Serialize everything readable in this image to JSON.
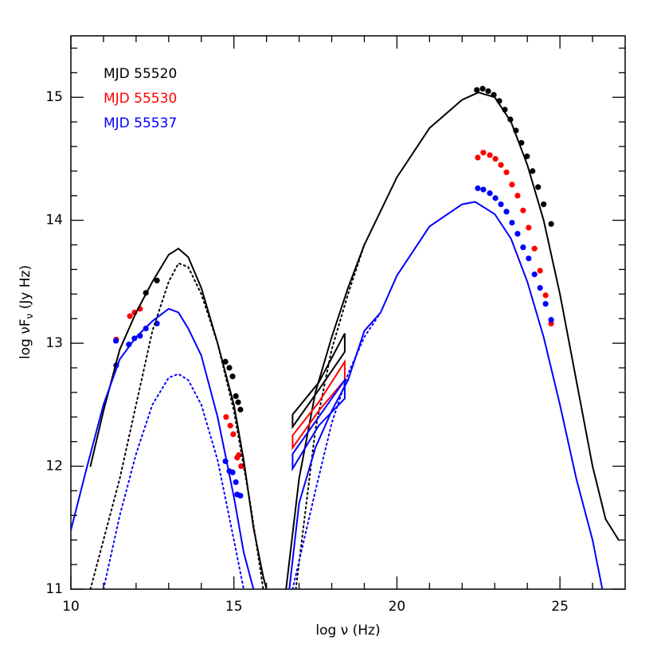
{
  "chart_data": {
    "type": "scatter",
    "xlabel": [
      "log ",
      "ν",
      " (Hz)"
    ],
    "ylabel": [
      "log νF",
      "ν",
      " (Jy Hz)"
    ],
    "xlim": [
      10,
      27
    ],
    "ylim": [
      11,
      15.5
    ],
    "xticks": [
      10,
      15,
      20,
      25
    ],
    "yticks": [
      11,
      12,
      13,
      14,
      15
    ],
    "xminorticks": [
      11,
      12,
      13,
      14,
      16,
      17,
      18,
      19,
      21,
      22,
      23,
      24,
      26
    ],
    "yminorticks": [
      11.2,
      11.4,
      11.6,
      11.8,
      12.2,
      12.4,
      12.6,
      12.8,
      13.2,
      13.4,
      13.6,
      13.8,
      14.2,
      14.4,
      14.6,
      14.8,
      15.2,
      15.4
    ],
    "legend": "upper left",
    "series": [
      {
        "name": "MJD 55520",
        "kind": "points",
        "color": "#000000",
        "x": [
          12.3,
          12.64,
          14.74,
          14.86,
          14.96,
          15.06,
          15.13,
          15.2,
          22.45,
          22.63,
          22.8,
          22.97,
          23.14,
          23.31,
          23.48,
          23.65,
          23.82,
          23.99,
          24.16,
          24.33,
          24.5,
          24.73
        ],
        "values": [
          13.41,
          13.51,
          12.85,
          12.8,
          12.73,
          12.57,
          12.52,
          12.46,
          15.06,
          15.07,
          15.05,
          15.02,
          14.97,
          14.9,
          14.82,
          14.73,
          14.63,
          14.52,
          14.4,
          14.27,
          14.13,
          13.97
        ]
      },
      {
        "name": "MJD 55530",
        "kind": "points",
        "color": "#ff0000",
        "x": [
          11.39,
          11.81,
          11.95,
          12.12,
          14.76,
          14.89,
          14.98,
          15.1,
          15.15,
          15.22,
          22.48,
          22.65,
          22.85,
          23.02,
          23.19,
          23.36,
          23.53,
          23.7,
          23.87,
          24.04,
          24.22,
          24.39,
          24.56,
          24.73
        ],
        "values": [
          13.03,
          13.22,
          13.25,
          13.28,
          12.4,
          12.33,
          12.26,
          12.07,
          12.09,
          12.0,
          14.51,
          14.55,
          14.53,
          14.5,
          14.45,
          14.39,
          14.29,
          14.2,
          14.08,
          13.94,
          13.77,
          13.59,
          13.39,
          13.16
        ]
      },
      {
        "name": "MJD 55537",
        "kind": "points",
        "color": "#0000ff",
        "x": [
          11.39,
          11.38,
          11.78,
          11.95,
          12.12,
          12.3,
          12.64,
          14.74,
          14.86,
          14.96,
          15.06,
          15.1,
          15.2,
          22.48,
          22.65,
          22.85,
          23.02,
          23.19,
          23.36,
          23.53,
          23.7,
          23.87,
          24.04,
          24.22,
          24.39,
          24.56,
          24.73
        ],
        "values": [
          12.82,
          13.02,
          12.99,
          13.04,
          13.06,
          13.12,
          13.16,
          12.04,
          11.96,
          11.95,
          11.87,
          11.77,
          11.76,
          14.26,
          14.25,
          14.22,
          14.18,
          14.13,
          14.07,
          13.98,
          13.89,
          13.78,
          13.69,
          13.56,
          13.45,
          13.32,
          13.19
        ]
      },
      {
        "kind": "line",
        "dash": false,
        "color": "#000000",
        "x": [
          10.6,
          11,
          11.5,
          12,
          12.5,
          13,
          13.3,
          13.6,
          14,
          14.5,
          15,
          15.3,
          15.6,
          15.9,
          16.0,
          null,
          16.6,
          17,
          17.5,
          18,
          18.5,
          19,
          20,
          21,
          22,
          22.5,
          23,
          23.5,
          24,
          24.5,
          25,
          25.5,
          26,
          26.4,
          26.8
        ],
        "values": [
          12.0,
          12.45,
          12.95,
          13.25,
          13.5,
          13.72,
          13.77,
          13.7,
          13.45,
          13.0,
          12.5,
          12.05,
          11.5,
          11.1,
          11.0,
          null,
          11.0,
          11.9,
          12.6,
          13.05,
          13.45,
          13.8,
          14.35,
          14.75,
          14.98,
          15.04,
          15.0,
          14.8,
          14.45,
          14.0,
          13.4,
          12.7,
          12.0,
          11.57,
          11.4
        ]
      },
      {
        "kind": "line",
        "dash": true,
        "color": "#000000",
        "x": [
          10.6,
          11,
          11.5,
          12,
          12.5,
          13,
          13.3,
          13.6,
          14,
          14.5,
          15,
          15.5,
          15.9,
          null,
          16.9,
          17.5,
          18,
          18.5,
          19
        ],
        "values": [
          11.0,
          11.4,
          11.9,
          12.5,
          13.1,
          13.5,
          13.65,
          13.62,
          13.4,
          13.0,
          12.45,
          11.7,
          11.0,
          null,
          11.0,
          12.3,
          12.95,
          13.4,
          13.8
        ]
      },
      {
        "kind": "line",
        "dash": false,
        "color": "#0000ff",
        "x": [
          10,
          10.5,
          11,
          11.5,
          12,
          12.5,
          13,
          13.3,
          13.6,
          14,
          14.5,
          15,
          15.3,
          15.6,
          null,
          16.7,
          17,
          17.5,
          18,
          18.5,
          19,
          19.5,
          20,
          21,
          22,
          22.4,
          23,
          23.5,
          24,
          24.5,
          25,
          25.5,
          26,
          26.3
        ],
        "values": [
          11.48,
          12.0,
          12.5,
          12.87,
          13.05,
          13.18,
          13.28,
          13.25,
          13.12,
          12.9,
          12.4,
          11.75,
          11.3,
          11.0,
          null,
          11.0,
          11.7,
          12.15,
          12.45,
          12.7,
          13.1,
          13.25,
          13.55,
          13.95,
          14.13,
          14.15,
          14.05,
          13.85,
          13.5,
          13.05,
          12.5,
          11.9,
          11.4,
          11.0
        ]
      },
      {
        "kind": "line",
        "dash": true,
        "color": "#0000ff",
        "x": [
          11,
          11.5,
          12,
          12.5,
          13,
          13.3,
          13.6,
          14,
          14.5,
          15,
          15.3,
          null,
          16.8,
          17.5,
          18,
          18.5,
          19,
          19.5
        ],
        "values": [
          11.0,
          11.6,
          12.1,
          12.5,
          12.72,
          12.75,
          12.7,
          12.5,
          12.05,
          11.4,
          11.0,
          null,
          11.0,
          11.8,
          12.35,
          12.75,
          13.05,
          13.25
        ]
      },
      {
        "kind": "bowtie",
        "color": "#000000",
        "x": [
          16.8,
          17.6,
          18.4,
          18.4,
          17.6,
          16.8
        ],
        "values": [
          12.42,
          12.68,
          13.08,
          12.93,
          12.62,
          12.32
        ]
      },
      {
        "kind": "bowtie",
        "color": "#ff0000",
        "x": [
          16.8,
          17.6,
          18.4,
          18.4,
          17.6,
          16.8
        ],
        "values": [
          12.25,
          12.52,
          12.85,
          12.7,
          12.45,
          12.15
        ]
      },
      {
        "kind": "bowtie",
        "color": "#0000ff",
        "x": [
          16.8,
          17.6,
          18.4,
          18.4,
          17.6,
          16.8
        ],
        "values": [
          12.1,
          12.4,
          12.7,
          12.55,
          12.33,
          11.98
        ]
      }
    ]
  }
}
